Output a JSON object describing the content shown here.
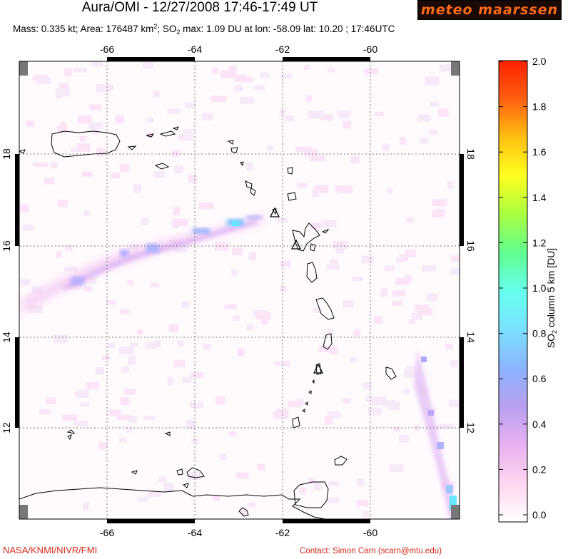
{
  "header": {
    "title": "Aura/OMI - 12/27/2008 17:46-17:49 UT",
    "logo_text": "meteo maarssen",
    "mass": "Mass: 0.335 kt; Area: 176487 km",
    "mass_sup": "2",
    "so2_part": "; SO",
    "so2_sub": "2",
    "rest": " max: 1.09 DU at lon: -58.09 lat: 10.20 ; 17:46UTC"
  },
  "map": {
    "lon_ticks": [
      "-66",
      "-64",
      "-62",
      "-60"
    ],
    "lat_ticks": [
      "18",
      "16",
      "14",
      "12"
    ],
    "gridline_style": "dotted",
    "plume_colors": [
      "#ffe6f5",
      "#f2c4f0",
      "#d9b0f5",
      "#aab4ff",
      "#80c8ff",
      "#66e6ff"
    ],
    "volcano_markers": [
      "triangle",
      "triangle",
      "triangle"
    ]
  },
  "colorbar": {
    "label_main": "SO",
    "label_sub": "2",
    "label_rest": " column 5 km [DU]",
    "ticks": [
      "2.0",
      "1.8",
      "1.6",
      "1.4",
      "1.2",
      "1.0",
      "0.8",
      "0.6",
      "0.4",
      "0.2",
      "0.0"
    ],
    "colors": [
      "#ffffff",
      "#ffd6f0",
      "#e8b0f0",
      "#b8a0f0",
      "#8cb4ff",
      "#7ae0ff",
      "#66ffee",
      "#60ff90",
      "#a8ff40",
      "#ffff20",
      "#ffc010",
      "#ff6010",
      "#ff2000"
    ]
  },
  "footer": {
    "left": "NASA/KNMI/NIVR/FMI",
    "right": "Contact: Simon Carn (scarn@mtu.edu)"
  }
}
